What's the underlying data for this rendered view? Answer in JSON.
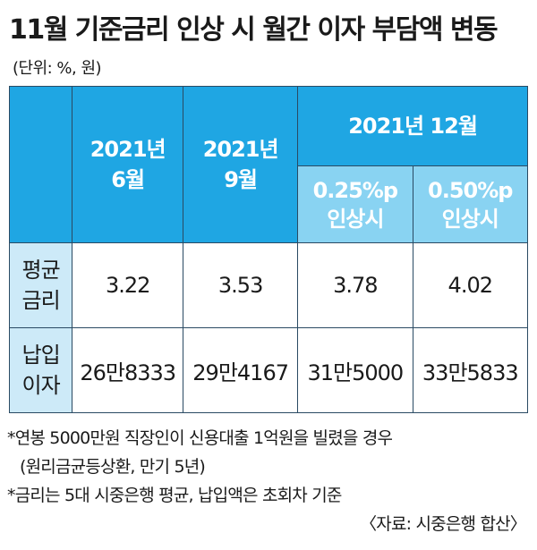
{
  "title": "11월 기준금리 인상 시 월간 이자 부담액 변동",
  "unit": "(단위: %, 원)",
  "table": {
    "headers": {
      "col1": [
        "2021년",
        "6월"
      ],
      "col2": [
        "2021년",
        "9월"
      ],
      "col3_group": "2021년 12월",
      "col3a": [
        "0.25%p",
        "인상시"
      ],
      "col3b": [
        "0.50%p",
        "인상시"
      ]
    },
    "rows": [
      {
        "label": [
          "평균",
          "금리"
        ],
        "values": [
          "3.22",
          "3.53",
          "3.78",
          "4.02"
        ]
      },
      {
        "label": [
          "납입",
          "이자"
        ],
        "values": [
          "26만8333",
          "29만4167",
          "31만5000",
          "33만5833"
        ]
      }
    ]
  },
  "notes": [
    "*연봉 5000만원 직장인이 신용대출 1억원을 빌렸을 경우",
    "(원리금균등상환, 만기 5년)",
    "*금리는 5대 시중은행 평균, 납입액은 초회차 기준"
  ],
  "source": "〈자료: 시중은행 합산〉"
}
